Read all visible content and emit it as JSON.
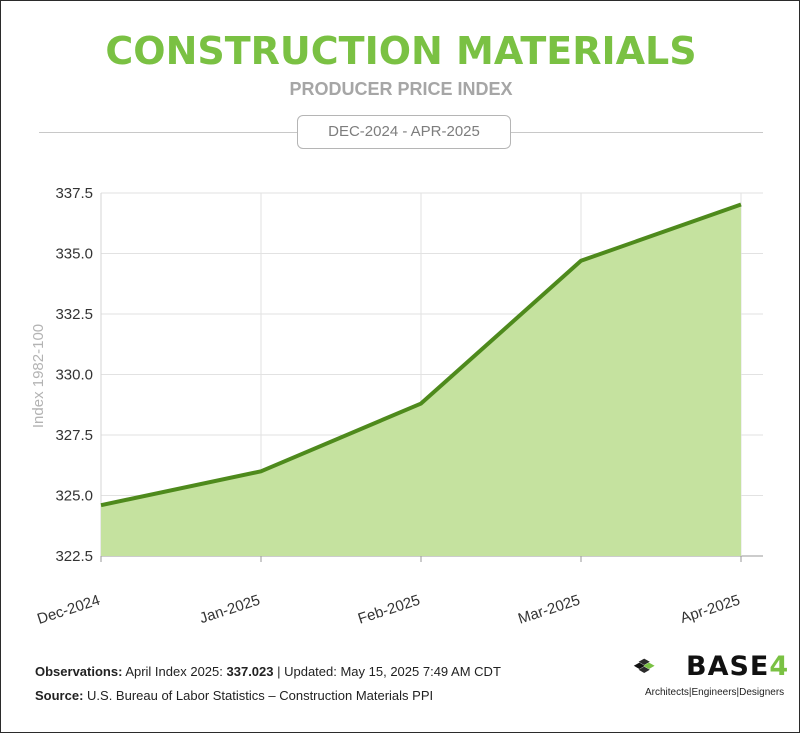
{
  "header": {
    "title": "CONSTRUCTION MATERIALS",
    "subtitle": "PRODUCER PRICE INDEX",
    "date_range": "DEC-2024 - APR-2025"
  },
  "chart_data": {
    "type": "area",
    "categories": [
      "Dec-2024",
      "Jan-2025",
      "Feb-2025",
      "Mar-2025",
      "Apr-2025"
    ],
    "series": [
      {
        "values": [
          324.6,
          326.0,
          328.8,
          334.7,
          337.023
        ]
      }
    ],
    "ylabel": "Index 1982-100",
    "ylim": [
      322.5,
      337.5
    ],
    "yticks": [
      "322.5",
      "325.0",
      "327.5",
      "330.0",
      "332.5",
      "335.0",
      "337.5"
    ],
    "grid": true,
    "line_color": "#4e8a1c",
    "fill_color": "#c5e29f"
  },
  "footer": {
    "obs_label": "Observations:",
    "obs_text": " April Index 2025: ",
    "obs_value": "337.023",
    "obs_updated": " | Updated: May 15, 2025 7:49 AM CDT",
    "source_label": "Source:",
    "source_text": " U.S. Bureau of Labor Statistics – Construction Materials PPI"
  },
  "logo": {
    "word": "BASE",
    "number": "4",
    "tagline": "Architects|Engineers|Designers"
  },
  "colors": {
    "accent": "#7ac143",
    "muted": "#a6a6a6"
  }
}
